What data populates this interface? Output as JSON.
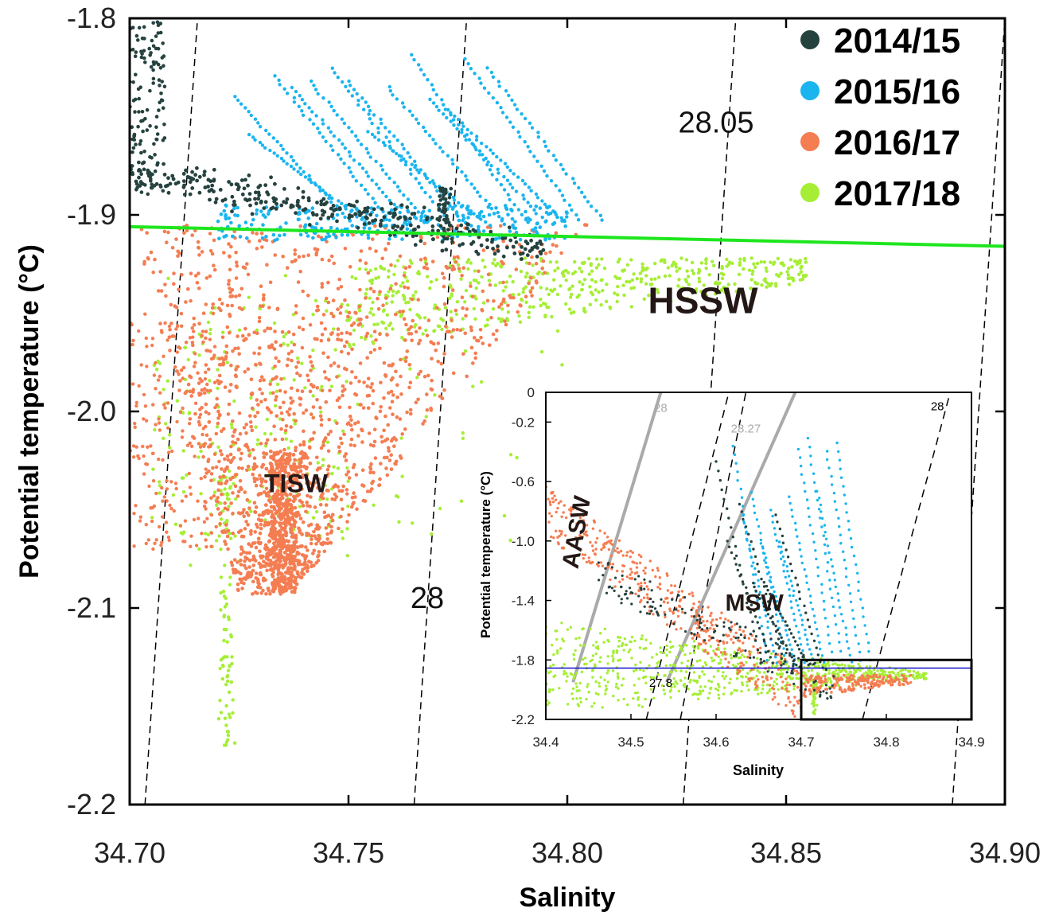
{
  "chart_data": [
    {
      "type": "scatter",
      "xlabel": "Salinity",
      "ylabel": "Potential temperature (°C)",
      "xlim": [
        34.7,
        34.9
      ],
      "ylim": [
        -2.2,
        -1.8
      ],
      "x_ticks": [
        "34.70",
        "34.75",
        "34.80",
        "34.85",
        "34.90"
      ],
      "y_ticks": [
        "-1.8",
        "-1.9",
        "-2.0",
        "-2.1",
        "-2.2"
      ],
      "legend_position": "top-right",
      "series": [
        {
          "name": "2014/15",
          "color": "#25423f"
        },
        {
          "name": "2015/16",
          "color": "#1ab5ef"
        },
        {
          "name": "2016/17",
          "color": "#f47d52"
        },
        {
          "name": "2017/18",
          "color": "#a5ee35"
        }
      ],
      "water_mass_labels": [
        {
          "text": "HSSW",
          "s": 34.831,
          "t": -1.95
        },
        {
          "text": "TISW",
          "s": 34.738,
          "t": -2.041
        }
      ],
      "isopycnal_labels": [
        {
          "text": "28.05",
          "s": 34.834,
          "t": -1.858
        },
        {
          "text": "28",
          "s": 34.768,
          "t": -2.1
        }
      ],
      "freezing_line": {
        "color": "#1ee61e",
        "points": [
          [
            34.7,
            -1.906
          ],
          [
            34.9,
            -1.916
          ]
        ]
      },
      "isopycnals": [
        {
          "points": [
            [
              34.7035,
              -2.2
            ],
            [
              34.7155,
              -1.8
            ]
          ]
        },
        {
          "points": [
            [
              34.765,
              -2.2
            ],
            [
              34.777,
              -1.8
            ]
          ]
        },
        {
          "points": [
            [
              34.8265,
              -2.2
            ],
            [
              34.8385,
              -1.8
            ]
          ]
        },
        {
          "points": [
            [
              34.888,
              -2.2
            ],
            [
              34.9,
              -1.8
            ]
          ]
        }
      ]
    },
    {
      "type": "scatter",
      "xlabel": "Salinity",
      "ylabel": "Potential temperature (°C)",
      "xlim": [
        34.4,
        34.9
      ],
      "ylim": [
        -2.2,
        0
      ],
      "x_ticks": [
        "34.4",
        "34.5",
        "34.6",
        "34.7",
        "34.8",
        "34.9"
      ],
      "y_ticks": [
        "0",
        "-0.2",
        "-0.6",
        "-1.0",
        "-1.4",
        "-1.8",
        "-2.2"
      ],
      "water_mass_labels": [
        {
          "text": "AASW",
          "s": 34.445,
          "t": -0.95
        },
        {
          "text": "MSW",
          "s": 34.645,
          "t": -1.47
        }
      ],
      "isopycnal_labels": [
        {
          "text": "28",
          "s": 34.535,
          "t": -0.13,
          "color": "#aaaaaa"
        },
        {
          "text": "28.27",
          "s": 34.635,
          "t": -0.27,
          "color": "#aaaaaa"
        },
        {
          "text": "28",
          "s": 34.86,
          "t": -0.12,
          "color": "#000000"
        },
        {
          "text": "27.8",
          "s": 34.535,
          "t": -1.98,
          "color": "#000000"
        }
      ],
      "freezing_line": {
        "color": "#1010cc",
        "points": [
          [
            34.4,
            -1.855
          ],
          [
            34.9,
            -1.855
          ]
        ]
      },
      "gray_isopycnals": [
        {
          "points": [
            [
              34.432,
              -1.95
            ],
            [
              34.535,
              0
            ]
          ]
        },
        {
          "points": [
            [
              34.542,
              -1.95
            ],
            [
              34.693,
              0
            ]
          ]
        }
      ],
      "isopycnals": [
        {
          "points": [
            [
              34.518,
              -2.2
            ],
            [
              34.615,
              0
            ]
          ]
        },
        {
          "points": [
            [
              34.558,
              -2.2
            ],
            [
              34.635,
              0
            ]
          ]
        },
        {
          "points": [
            [
              34.772,
              -2.2
            ],
            [
              34.875,
              0
            ]
          ]
        }
      ],
      "zoom_box": {
        "xlim": [
          34.7,
          34.9
        ],
        "ylim": [
          -2.2,
          -1.8
        ]
      }
    }
  ]
}
